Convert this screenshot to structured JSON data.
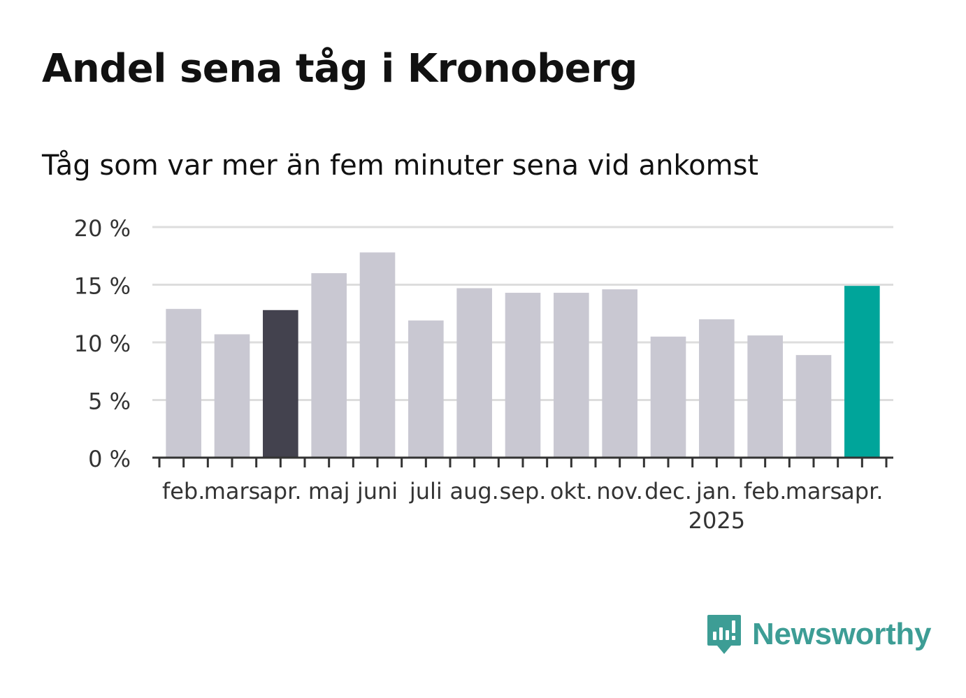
{
  "title": "Andel sena tåg i Kronoberg",
  "subtitle": "Tåg som var mer än fem minuter sena vid ankomst",
  "brand": {
    "name": "Newsworthy",
    "icon": "newsworthy-logo-icon"
  },
  "colors": {
    "default": "#c9c8d2",
    "highlight_dark": "#43424e",
    "highlight_teal": "#00a59a",
    "grid": "#dddddd",
    "axis": "#333333",
    "text": "#333333"
  },
  "chart_data": {
    "type": "bar",
    "categories": [
      "feb.",
      "mars",
      "apr.",
      "maj",
      "juni",
      "juli",
      "aug.",
      "sep.",
      "okt.",
      "nov.",
      "dec.",
      "jan.",
      "feb.",
      "mars",
      "apr."
    ],
    "year_labels": [
      {
        "index": 11,
        "label": "2025"
      }
    ],
    "values": [
      12.9,
      10.7,
      12.8,
      16.0,
      17.8,
      11.9,
      14.7,
      14.3,
      14.3,
      14.6,
      10.5,
      12.0,
      10.6,
      8.9,
      14.9
    ],
    "highlight": {
      "2": "highlight_dark",
      "14": "highlight_teal"
    },
    "ylim": [
      0,
      20
    ],
    "yticks": [
      0,
      5,
      10,
      15,
      20
    ],
    "ytick_labels": [
      "0 %",
      "5 %",
      "10 %",
      "15 %",
      "20 %"
    ],
    "xlabel": "",
    "ylabel": "",
    "grid": true
  }
}
